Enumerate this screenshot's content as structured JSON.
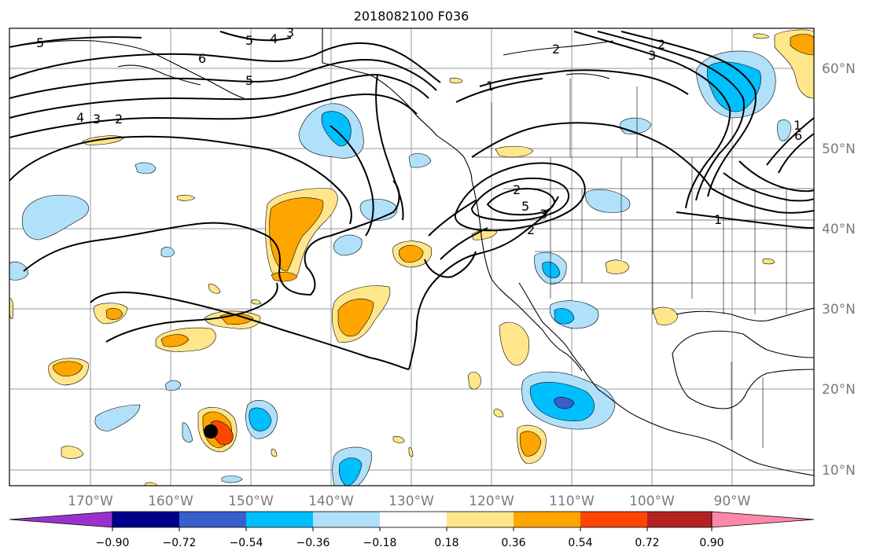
{
  "title": "2018082100 F036",
  "lat_labels": [
    "60°N",
    "50°N",
    "40°N",
    "30°N",
    "20°N",
    "10°N"
  ],
  "lon_labels": [
    "170°W",
    "160°W",
    "150°W",
    "140°W",
    "130°W",
    "120°W",
    "110°W",
    "100°W",
    "90°W"
  ],
  "contour_labels": [
    "5",
    "4",
    "3",
    "5",
    "6",
    "5",
    "2",
    "1",
    "3",
    "2",
    "1",
    "4",
    "3",
    "2",
    "5",
    "3",
    "2",
    "2",
    "1",
    "6"
  ],
  "colorbar": {
    "ticks": [
      "−0.90",
      "−0.72",
      "−0.54",
      "−0.36",
      "−0.18",
      "0.18",
      "0.36",
      "0.54",
      "0.72",
      "0.90"
    ],
    "colors": [
      "#9932cc",
      "#00008b",
      "#3a5fcd",
      "#00bfff",
      "#b0e0fa",
      "#ffffff",
      "#ffe68a",
      "#ffa500",
      "#ff4500",
      "#b22222",
      "#ff88aa"
    ]
  },
  "colors": {
    "light_blue": "#b0e0fa",
    "blue": "#00bfff",
    "purple_blue": "#3a5fcd",
    "light_yellow": "#ffe68a",
    "orange": "#ffa500",
    "red_orange": "#ff4500"
  }
}
